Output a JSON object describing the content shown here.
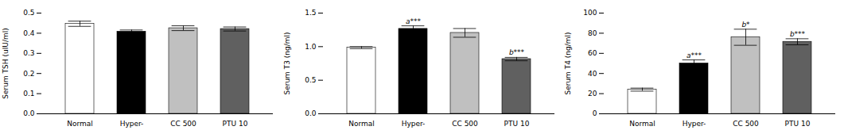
{
  "chart_data": [
    {
      "type": "bar",
      "ylabel": "Serum TSH (uIU/ml)",
      "categories": [
        "Normal",
        "Hyper-",
        "CC 500",
        "PTU 10"
      ],
      "values": [
        0.447,
        0.408,
        0.425,
        0.421
      ],
      "errors": [
        0.013,
        0.008,
        0.012,
        0.01
      ],
      "colors": [
        "#ffffff",
        "#000000",
        "#c0c0c0",
        "#606060"
      ],
      "annotations": [
        null,
        null,
        null,
        null
      ],
      "ylim": [
        0,
        0.5
      ],
      "yticks": [
        {
          "value": 0,
          "label": "0.0"
        },
        0.1,
        0.2,
        0.3,
        0.4,
        0.5
      ]
    },
    {
      "type": "bar",
      "ylabel": "Serum T3 (ng/ml)",
      "categories": [
        "Normal",
        "Hyper-",
        "CC 500",
        "PTU 10"
      ],
      "values": [
        0.985,
        1.265,
        1.205,
        0.815
      ],
      "errors": [
        0.015,
        0.045,
        0.065,
        0.025
      ],
      "colors": [
        "#ffffff",
        "#000000",
        "#c0c0c0",
        "#606060"
      ],
      "annotations": [
        null,
        "a***",
        null,
        "b***"
      ],
      "ylim": [
        0,
        1.5
      ],
      "yticks": [
        {
          "value": 0,
          "label": "0.0"
        },
        0.5,
        {
          "value": 1,
          "label": "1.0"
        },
        1.5
      ]
    },
    {
      "type": "bar",
      "ylabel": "Serum T4 (ng/ml)",
      "categories": [
        "Normal",
        "Hyper-",
        "CC 500",
        "PTU 10"
      ],
      "values": [
        24.0,
        50.0,
        76.0,
        71.5
      ],
      "errors": [
        1.5,
        3.5,
        8.0,
        3.0
      ],
      "colors": [
        "#ffffff",
        "#000000",
        "#c0c0c0",
        "#606060"
      ],
      "annotations": [
        null,
        "a***",
        "b*",
        "b***"
      ],
      "ylim": [
        0,
        100
      ],
      "yticks": [
        0,
        20,
        40,
        60,
        80,
        100
      ]
    }
  ]
}
